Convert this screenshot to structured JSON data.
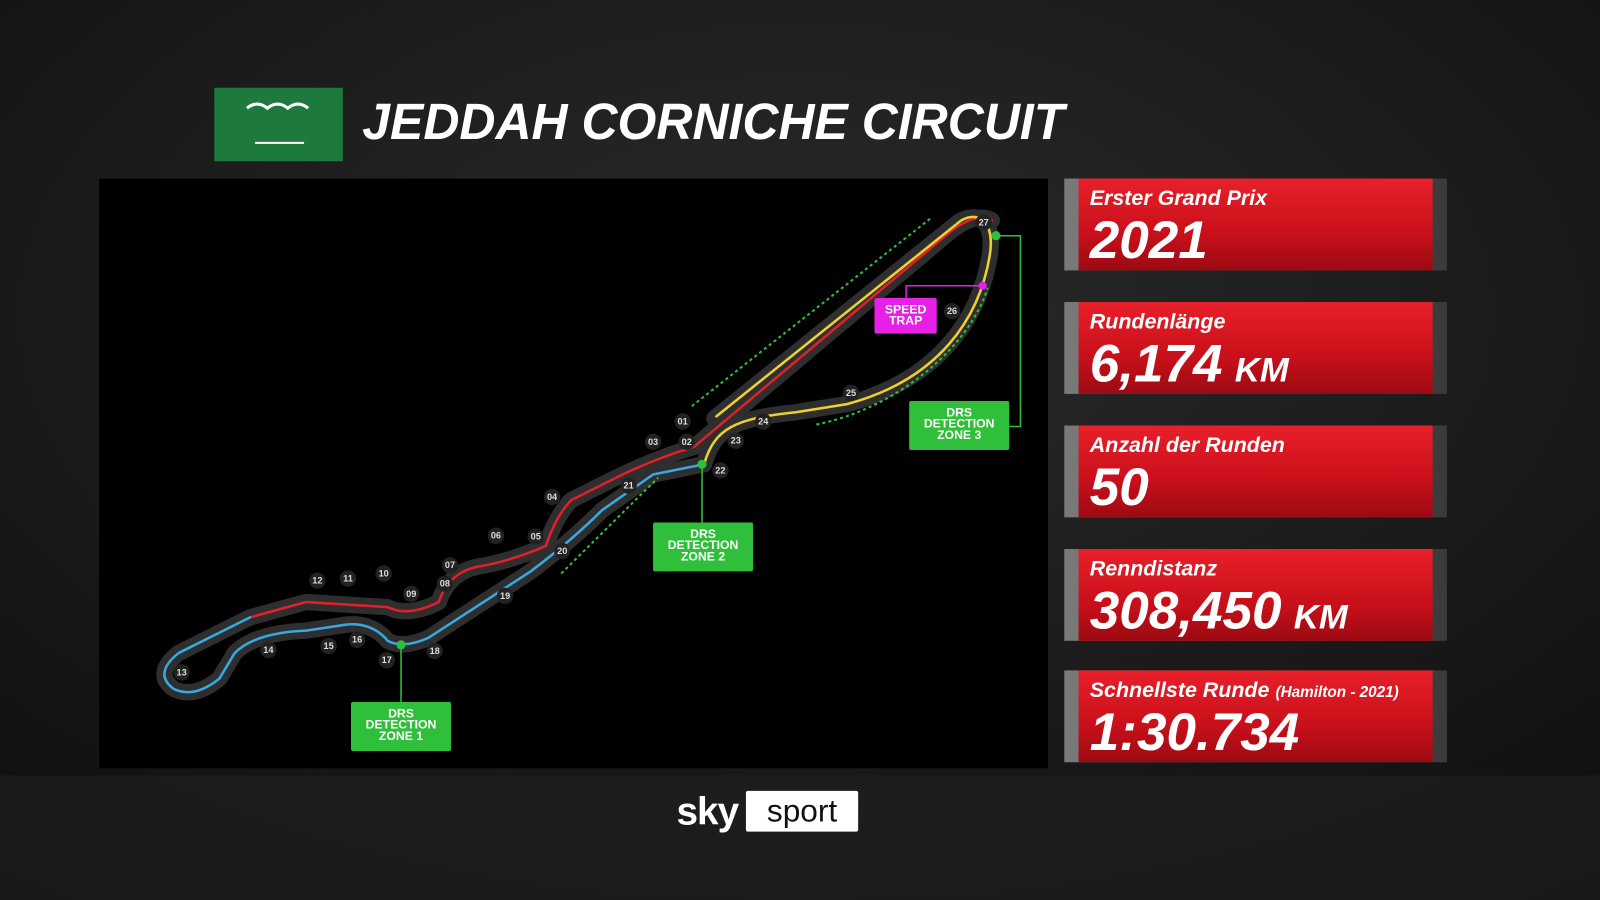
{
  "header": {
    "title": "JEDDAH CORNICHE CIRCUIT"
  },
  "stats": [
    {
      "label": "Erster Grand Prix",
      "value": "2021"
    },
    {
      "label": "Rundenlänge",
      "value": "6,174",
      "unit": "KM"
    },
    {
      "label": "Anzahl der Runden",
      "value": "50"
    },
    {
      "label": "Renndistanz",
      "value": "308,450",
      "unit": "KM"
    },
    {
      "label": "Schnellste Runde",
      "note": "(Hamilton - 2021)",
      "value": "1:30.734"
    }
  ],
  "map": {
    "turns": [
      "01",
      "02",
      "03",
      "04",
      "05",
      "06",
      "07",
      "08",
      "09",
      "10",
      "11",
      "12",
      "13",
      "14",
      "15",
      "16",
      "17",
      "18",
      "19",
      "20",
      "21",
      "22",
      "23",
      "24",
      "25",
      "26",
      "27"
    ],
    "drs_zones": [
      {
        "lines": [
          "DRS",
          "DETECTION",
          "ZONE 1"
        ]
      },
      {
        "lines": [
          "DRS",
          "DETECTION",
          "ZONE 2"
        ]
      },
      {
        "lines": [
          "DRS",
          "DETECTION",
          "ZONE 3"
        ]
      }
    ],
    "speed_trap": {
      "lines": [
        "SPEED",
        "TRAP"
      ]
    }
  },
  "logo": {
    "brand": "sky",
    "channel": "sport"
  }
}
